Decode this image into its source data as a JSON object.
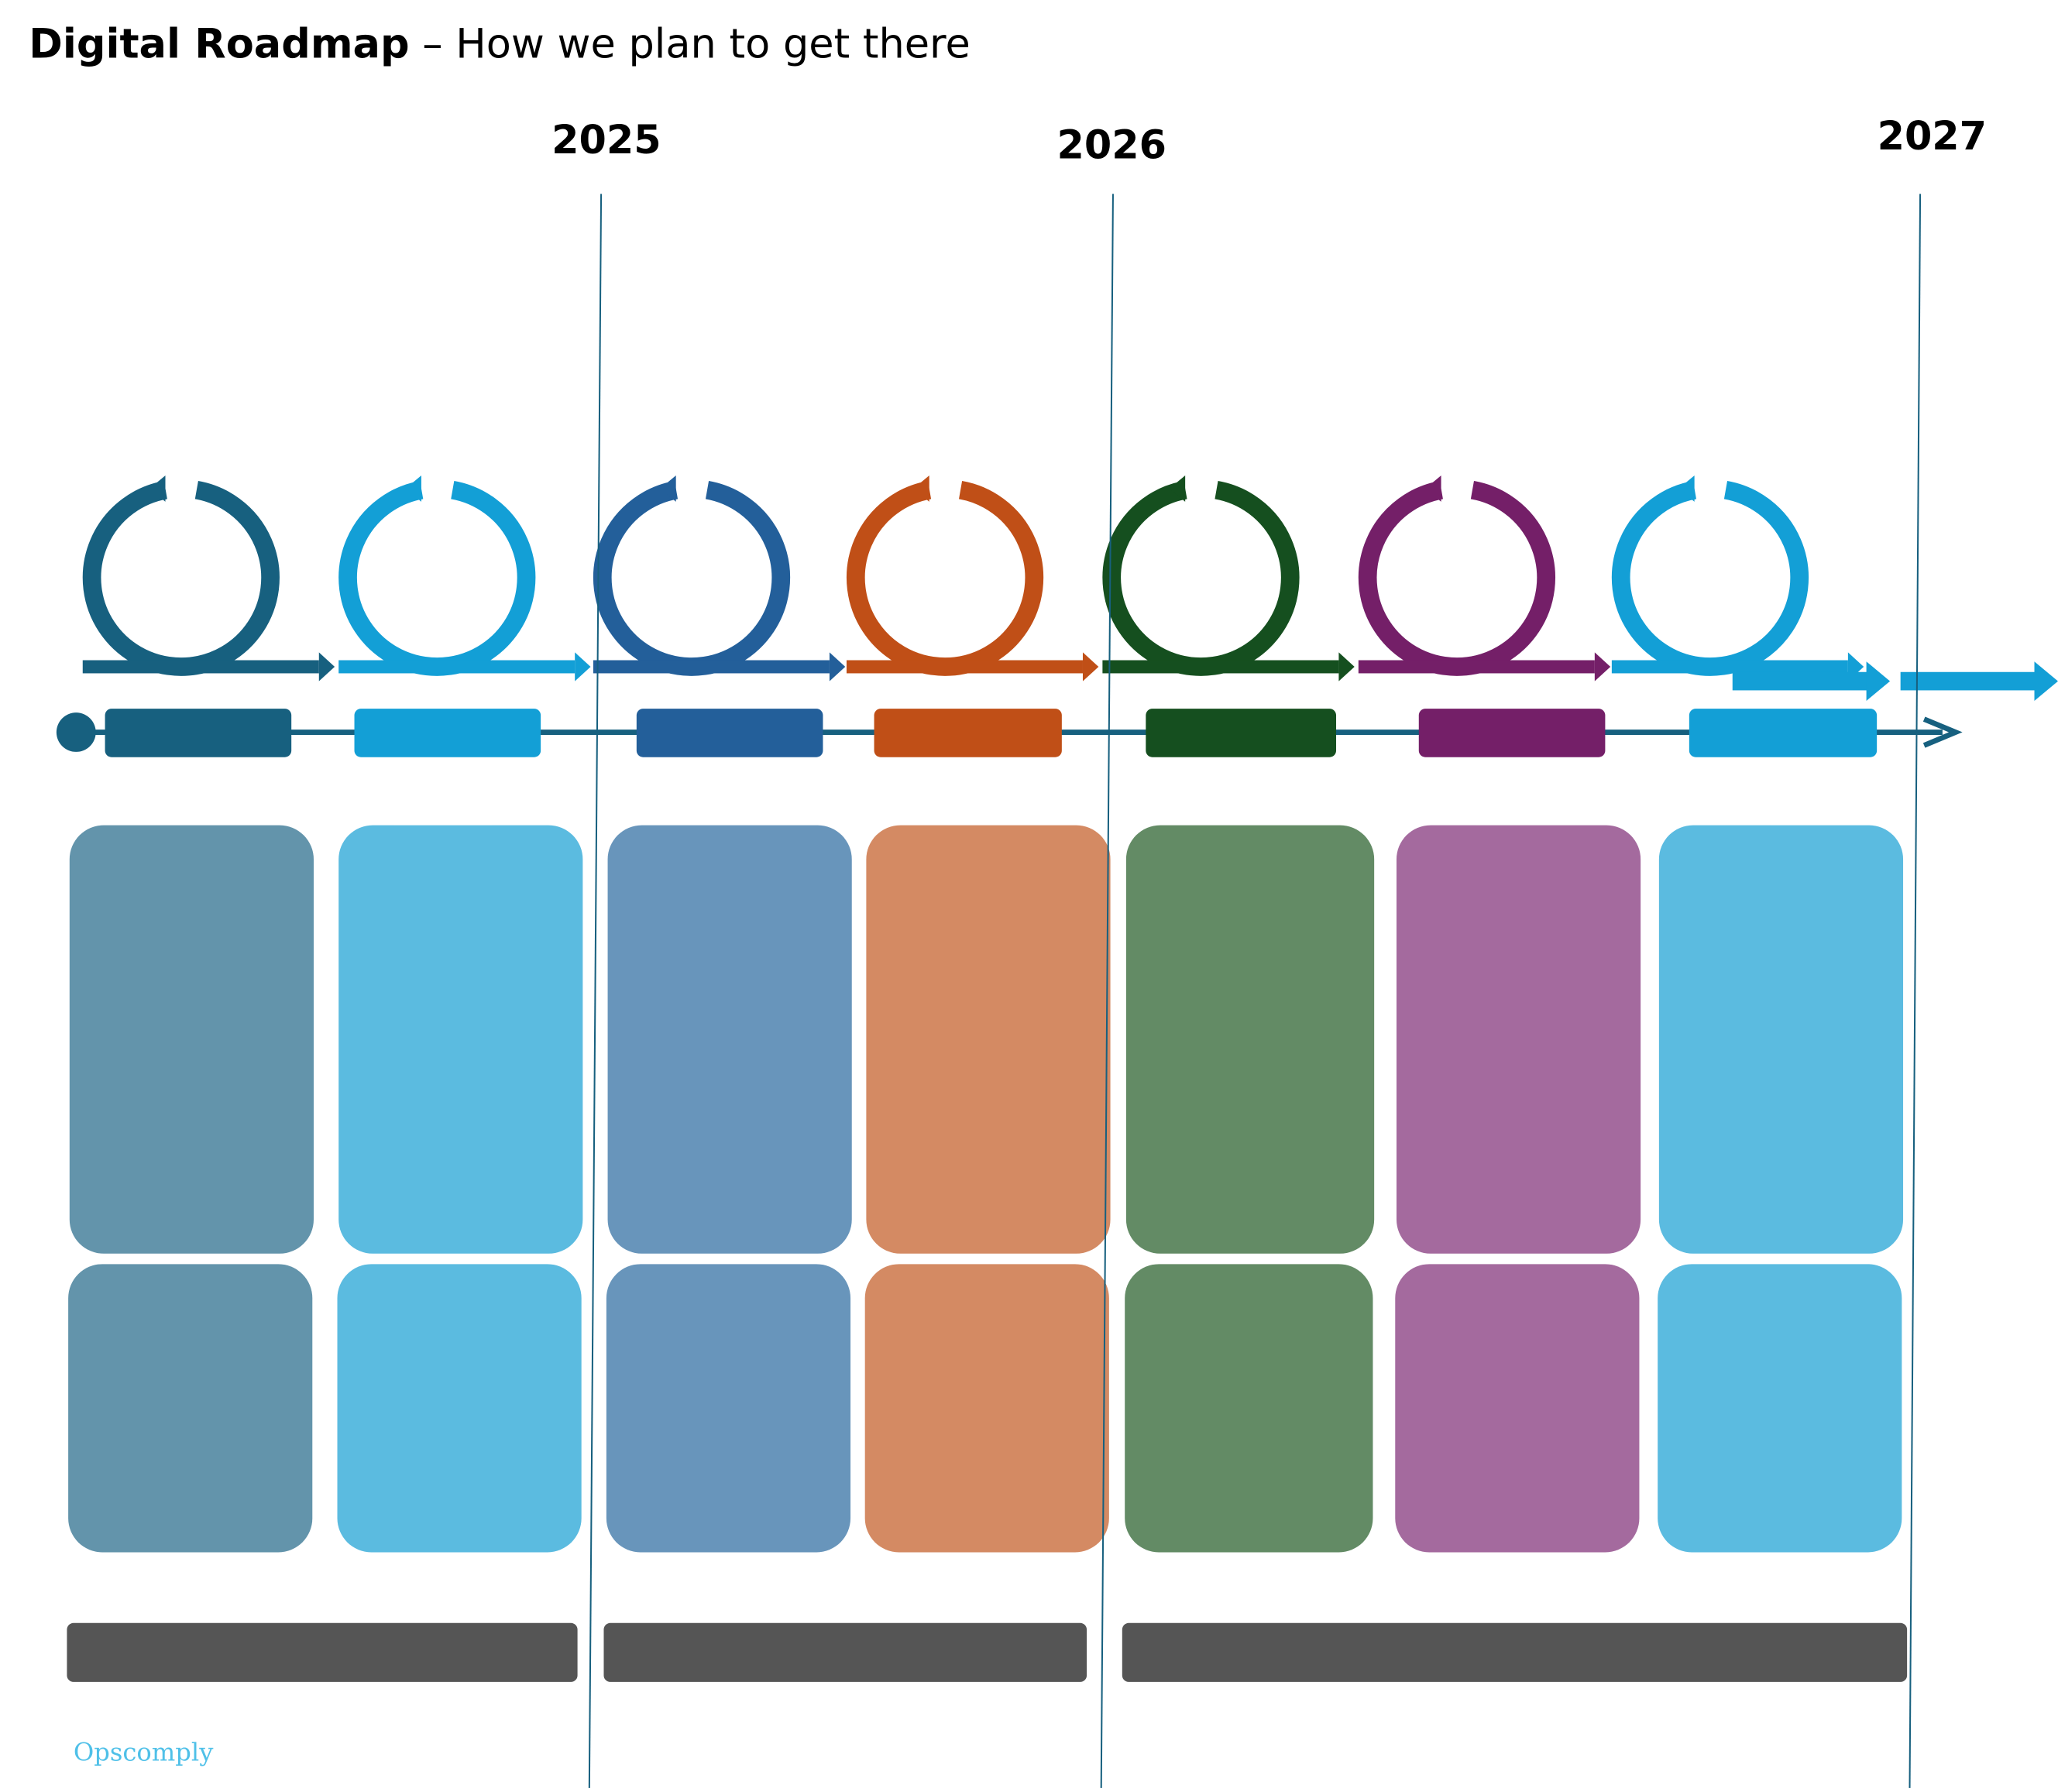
{
  "header": {
    "title": "Digital Roadmap",
    "subtitle": "– How we plan to get there"
  },
  "years": [
    "2025",
    "2026",
    "2027"
  ],
  "logo": "Opscomply"
}
